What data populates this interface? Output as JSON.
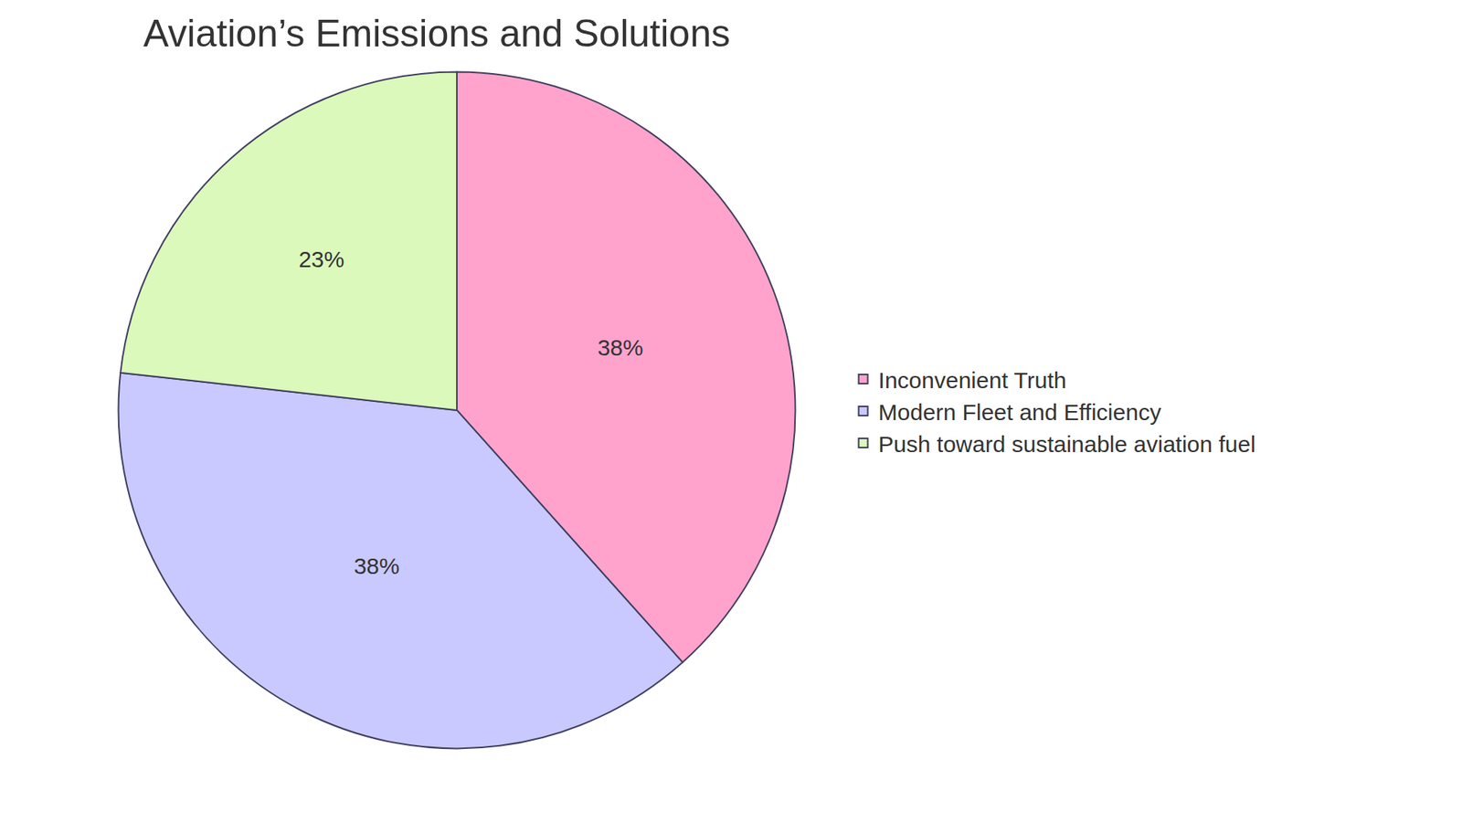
{
  "chart_data": {
    "type": "pie",
    "title": "Aviation’s Emissions and Solutions",
    "categories": [
      "Inconvenient Truth",
      "Modern Fleet and Efficiency",
      "Push toward sustainable aviation fuel"
    ],
    "values": [
      38,
      38,
      23
    ],
    "value_labels": [
      "38%",
      "38%",
      "23%"
    ],
    "colors": [
      "#ffa3cc",
      "#c9c9ff",
      "#dbf9ba"
    ],
    "data_labels": true,
    "legend": "right"
  }
}
